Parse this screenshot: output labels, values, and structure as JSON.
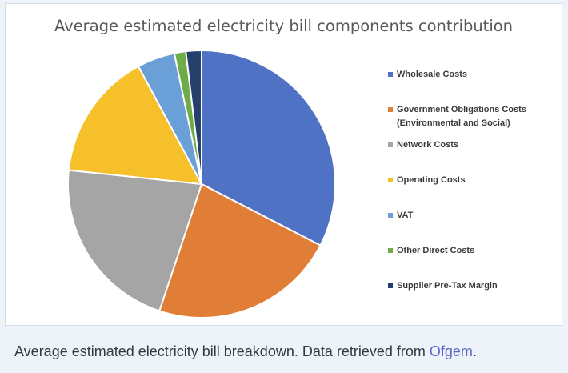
{
  "chart_data": {
    "type": "pie",
    "title": "Average estimated electricity bill components contribution",
    "legend_position": "right",
    "slices": [
      {
        "label": "Wholesale Costs",
        "value": 32.8,
        "color": "#4f72c4"
      },
      {
        "label": "Government Obligations Costs\n(Environmental and Social)",
        "value": 22.7,
        "color": "#e07d36"
      },
      {
        "label": "Network Costs",
        "value": 21.7,
        "color": "#a5a5a5"
      },
      {
        "label": "Operating Costs",
        "value": 15.6,
        "color": "#f5c02a"
      },
      {
        "label": "VAT",
        "value": 4.6,
        "color": "#6a9fd8"
      },
      {
        "label": "Other Direct Costs",
        "value": 1.4,
        "color": "#6fab47"
      },
      {
        "label": "Supplier Pre-Tax Margin",
        "value": 1.9,
        "color": "#26406e"
      }
    ]
  },
  "caption": {
    "text": "Average estimated electricity bill breakdown. Data retrieved from ",
    "link_text": "Ofgem",
    "end": "."
  }
}
